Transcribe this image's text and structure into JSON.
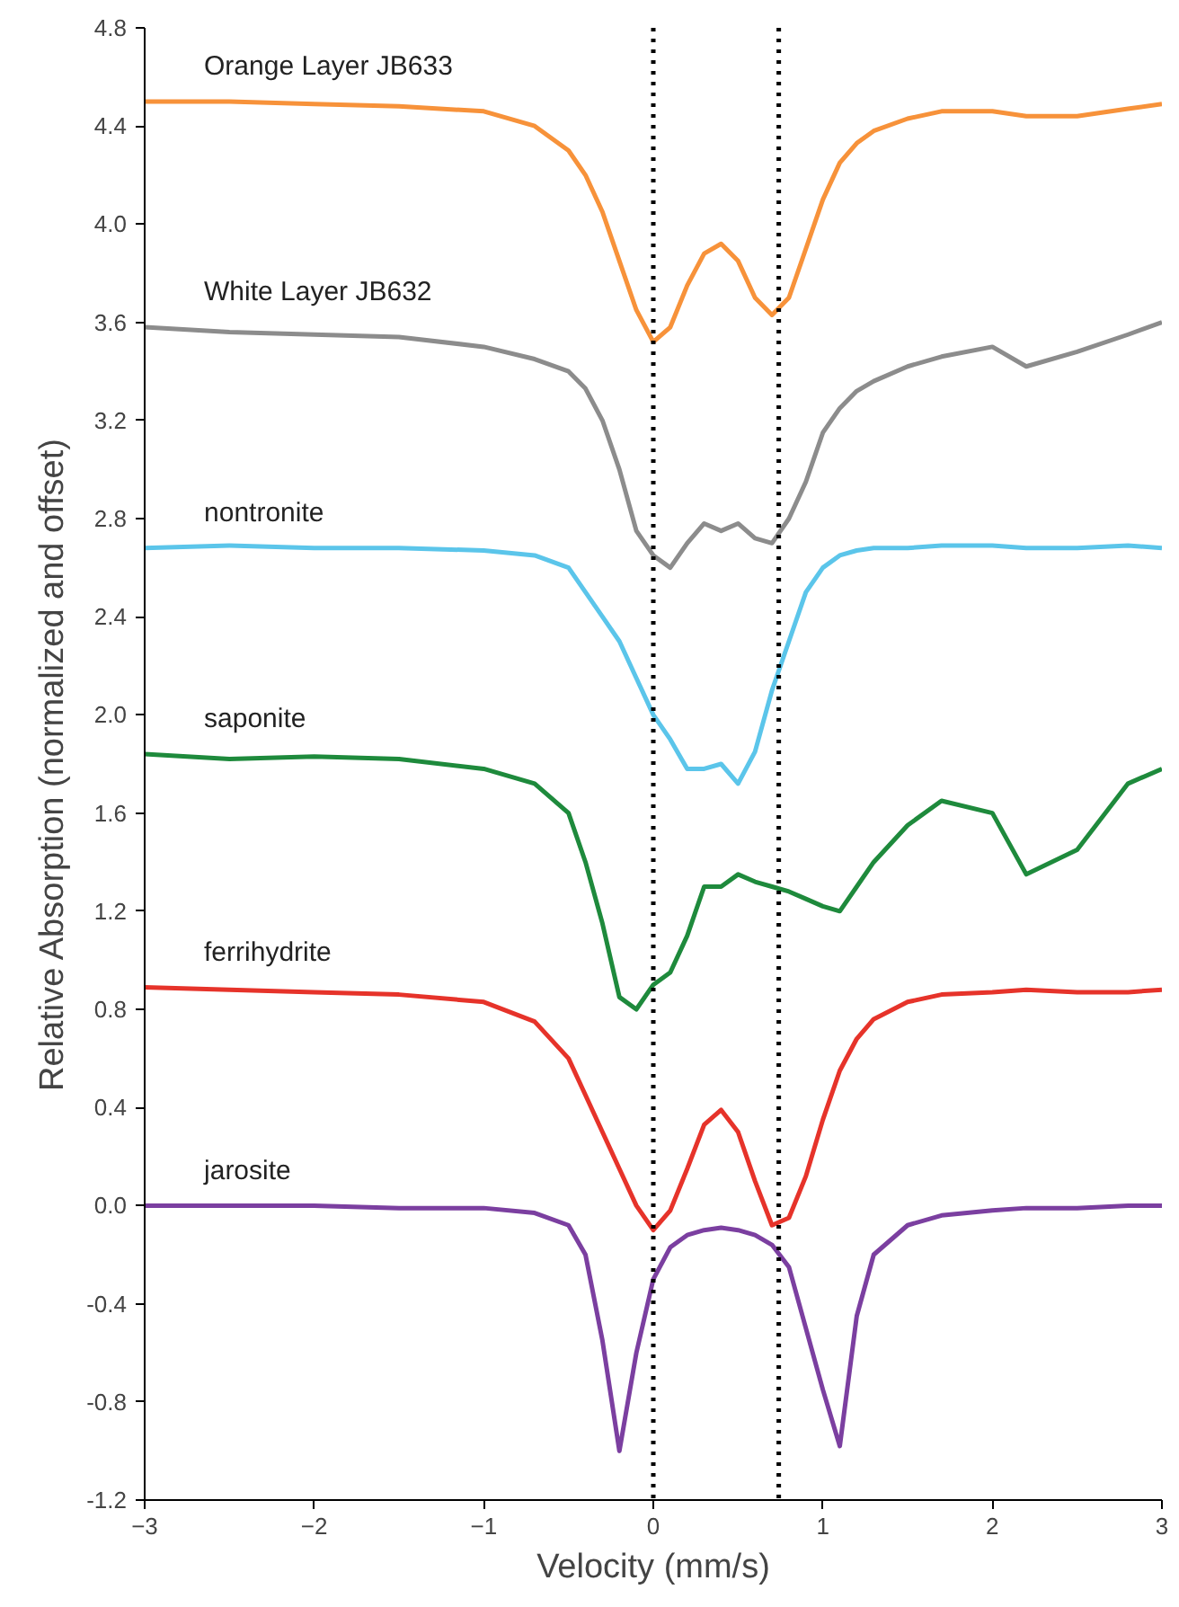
{
  "chart_data": {
    "type": "line",
    "xlabel": "Velocity (mm/s)",
    "ylabel": "Relative Absorption (normalized and offset)",
    "xlim": [
      -3,
      3
    ],
    "ylim": [
      -1.2,
      4.8
    ],
    "xticks": [
      -3,
      -2,
      -1,
      0,
      1,
      2,
      3
    ],
    "yticks": [
      {
        "value": -1.2,
        "label": "-1.2"
      },
      {
        "value": -0.8,
        "label": "-0.8"
      },
      {
        "value": -0.4,
        "label": "-0.4"
      },
      {
        "value": 0,
        "label": "0.0"
      },
      {
        "value": 0.4,
        "label": "0.4"
      },
      {
        "value": 0.8,
        "label": "0.8"
      },
      {
        "value": 1.2,
        "label": "1.2"
      },
      {
        "value": 1.6,
        "label": "1.6"
      },
      {
        "value": 2.0,
        "label": "2.0"
      },
      {
        "value": 2.4,
        "label": "2.4"
      },
      {
        "value": 2.8,
        "label": "2.8"
      },
      {
        "value": 3.2,
        "label": "3.2"
      },
      {
        "value": 3.6,
        "label": "3.6"
      },
      {
        "value": 4.0,
        "label": "4.0"
      },
      {
        "value": 4.4,
        "label": "4.4"
      },
      {
        "value": 4.8,
        "label": "4.8"
      }
    ],
    "grid": false,
    "marker": "none",
    "line_style": "solid",
    "ref_lines": [
      {
        "axis": "x",
        "value": 0,
        "label": null,
        "color": "#000000",
        "line_style": "dotted"
      },
      {
        "axis": "x",
        "value": 0.74,
        "label": null,
        "color": "#000000",
        "line_style": "dotted"
      }
    ],
    "x": [
      -3,
      -2.5,
      -2,
      -1.5,
      -1,
      -0.7,
      -0.5,
      -0.4,
      -0.3,
      -0.2,
      -0.1,
      0,
      0.1,
      0.2,
      0.3,
      0.4,
      0.5,
      0.6,
      0.7,
      0.8,
      0.9,
      1,
      1.1,
      1.2,
      1.3,
      1.5,
      1.7,
      2,
      2.2,
      2.5,
      2.8,
      3
    ],
    "series": [
      {
        "name": "Orange Layer JB633",
        "color": "#f7923a",
        "values": [
          4.5,
          4.5,
          4.49,
          4.48,
          4.46,
          4.4,
          4.3,
          4.2,
          4.05,
          3.85,
          3.65,
          3.52,
          3.58,
          3.75,
          3.88,
          3.92,
          3.85,
          3.7,
          3.63,
          3.7,
          3.9,
          4.1,
          4.25,
          4.33,
          4.38,
          4.43,
          4.46,
          4.46,
          4.44,
          4.44,
          4.47,
          4.49
        ]
      },
      {
        "name": "White Layer JB632",
        "color": "#8c8c8c",
        "values": [
          3.58,
          3.56,
          3.55,
          3.54,
          3.5,
          3.45,
          3.4,
          3.33,
          3.2,
          3.0,
          2.75,
          2.65,
          2.6,
          2.7,
          2.78,
          2.75,
          2.78,
          2.72,
          2.7,
          2.8,
          2.95,
          3.15,
          3.25,
          3.32,
          3.36,
          3.42,
          3.46,
          3.5,
          3.42,
          3.48,
          3.55,
          3.6
        ]
      },
      {
        "name": "nontronite",
        "color": "#5bc5ea",
        "values": [
          2.68,
          2.69,
          2.68,
          2.68,
          2.67,
          2.65,
          2.6,
          2.5,
          2.4,
          2.3,
          2.15,
          2.0,
          1.9,
          1.78,
          1.78,
          1.8,
          1.72,
          1.85,
          2.1,
          2.3,
          2.5,
          2.6,
          2.65,
          2.67,
          2.68,
          2.68,
          2.69,
          2.69,
          2.68,
          2.68,
          2.69,
          2.68
        ]
      },
      {
        "name": "saponite",
        "color": "#1e8a3c",
        "values": [
          1.84,
          1.82,
          1.83,
          1.82,
          1.78,
          1.72,
          1.6,
          1.4,
          1.15,
          0.85,
          0.8,
          0.9,
          0.95,
          1.1,
          1.3,
          1.3,
          1.35,
          1.32,
          1.3,
          1.28,
          1.25,
          1.22,
          1.2,
          1.3,
          1.4,
          1.55,
          1.65,
          1.6,
          1.35,
          1.45,
          1.72,
          1.78
        ]
      },
      {
        "name": "ferrihydrite",
        "color": "#e6332a",
        "values": [
          0.89,
          0.88,
          0.87,
          0.86,
          0.83,
          0.75,
          0.6,
          0.45,
          0.3,
          0.15,
          0.0,
          -0.1,
          -0.02,
          0.15,
          0.33,
          0.39,
          0.3,
          0.1,
          -0.08,
          -0.05,
          0.12,
          0.35,
          0.55,
          0.68,
          0.76,
          0.83,
          0.86,
          0.87,
          0.88,
          0.87,
          0.87,
          0.88
        ]
      },
      {
        "name": "jarosite",
        "color": "#7b3fa0",
        "values": [
          0,
          0,
          0,
          -0.01,
          -0.01,
          -0.03,
          -0.08,
          -0.2,
          -0.55,
          -1.0,
          -0.6,
          -0.3,
          -0.17,
          -0.12,
          -0.1,
          -0.09,
          -0.1,
          -0.12,
          -0.16,
          -0.25,
          -0.5,
          -0.75,
          -0.98,
          -0.45,
          -0.2,
          -0.08,
          -0.04,
          -0.02,
          -0.01,
          -0.01,
          0,
          0
        ]
      }
    ]
  }
}
